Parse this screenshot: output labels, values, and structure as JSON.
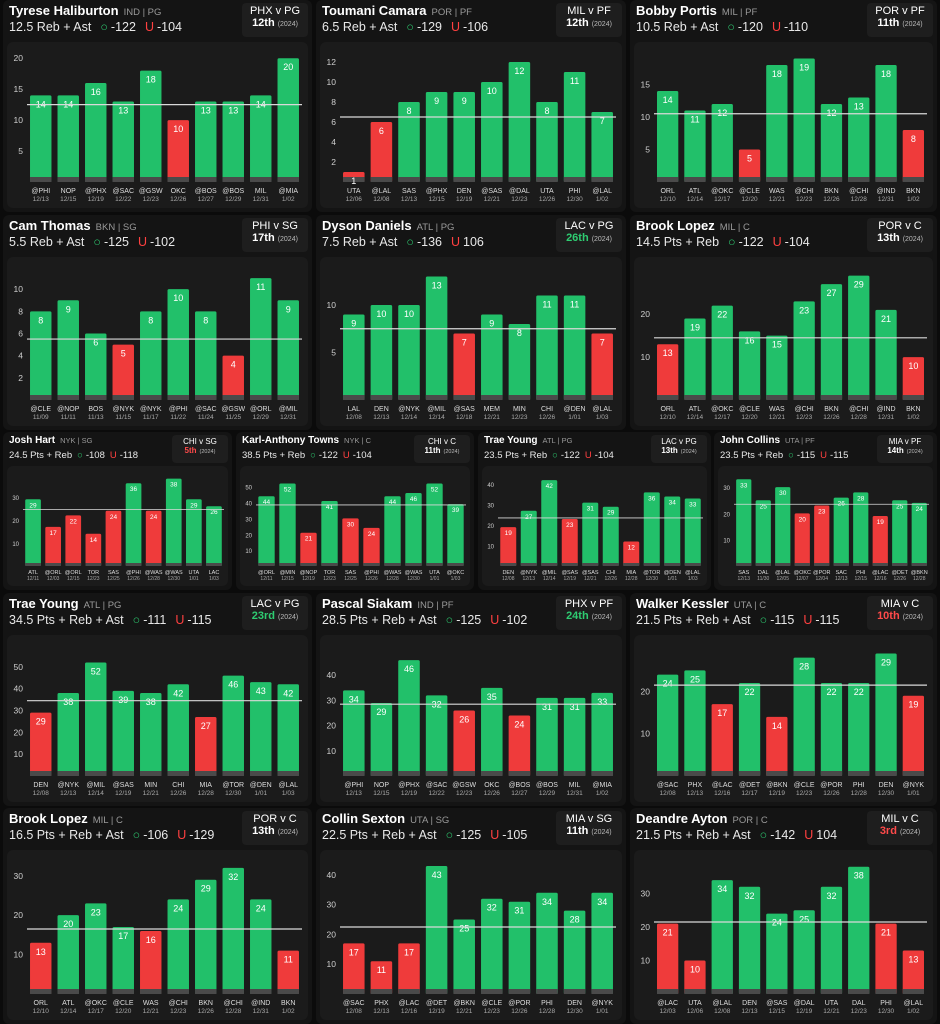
{
  "colors": {
    "over": "#22c06a",
    "under": "#ef3b3b",
    "line": "#d9d9d9",
    "base": "#4a4a4a",
    "rank_red": "#ff4a4a",
    "rank_green": "#2ecc71",
    "rank_white": "#ffffff"
  },
  "cards": [
    {
      "id": "c1",
      "size": "L",
      "name": "Tyrese Haliburton",
      "meta": "IND | PG",
      "prop": "12.5 Reb + Ast",
      "over": "-122",
      "under": "-104",
      "matchup": "PHX v PG",
      "rank": "12th",
      "rank_color": "white",
      "year": "(2024)",
      "chart_data": {
        "type": "bar",
        "line": 12.5,
        "ylim": [
          0,
          21
        ],
        "yticks": [
          5,
          10,
          15,
          20
        ],
        "values": [
          14,
          14,
          16,
          13,
          18,
          10,
          13,
          13,
          14,
          20
        ],
        "opp": [
          "@PHI",
          "NOP",
          "@PHX",
          "@SAC",
          "@GSW",
          "OKC",
          "@BOS",
          "@BOS",
          "MIL",
          "@MIA"
        ],
        "dates": [
          "12/13",
          "12/15",
          "12/19",
          "12/22",
          "12/23",
          "12/26",
          "12/27",
          "12/29",
          "12/31",
          "1/02"
        ]
      }
    },
    {
      "id": "c2",
      "size": "L",
      "name": "Toumani Camara",
      "meta": "POR | PF",
      "prop": "6.5 Reb + Ast",
      "over": "-129",
      "under": "-106",
      "matchup": "MIL v PF",
      "rank": "12th",
      "rank_color": "white",
      "year": "(2024)",
      "chart_data": {
        "type": "bar",
        "line": 6.5,
        "ylim": [
          0,
          13
        ],
        "yticks": [
          2,
          4,
          6,
          8,
          10,
          12
        ],
        "values": [
          1,
          6,
          8,
          9,
          9,
          10,
          12,
          8,
          11,
          7
        ],
        "opp": [
          "UTA",
          "@LAL",
          "SAS",
          "@PHX",
          "DEN",
          "@SAS",
          "@DAL",
          "UTA",
          "PHI",
          "@LAL"
        ],
        "dates": [
          "12/06",
          "12/08",
          "12/13",
          "12/15",
          "12/19",
          "12/21",
          "12/23",
          "12/26",
          "12/30",
          "1/02"
        ]
      }
    },
    {
      "id": "c3",
      "size": "L",
      "name": "Bobby Portis",
      "meta": "MIL | PF",
      "prop": "10.5 Reb + Ast",
      "over": "-120",
      "under": "-110",
      "matchup": "POR v PF",
      "rank": "11th",
      "rank_color": "white",
      "year": "(2024)",
      "chart_data": {
        "type": "bar",
        "line": 10.5,
        "ylim": [
          0,
          20
        ],
        "yticks": [
          5,
          10,
          15
        ],
        "values": [
          14,
          11,
          12,
          5,
          18,
          19,
          12,
          13,
          18,
          8
        ],
        "opp": [
          "ORL",
          "ATL",
          "@OKC",
          "@CLE",
          "WAS",
          "@CHI",
          "BKN",
          "@CHI",
          "@IND",
          "BKN"
        ],
        "dates": [
          "12/10",
          "12/14",
          "12/17",
          "12/20",
          "12/21",
          "12/23",
          "12/26",
          "12/28",
          "12/31",
          "1/02"
        ]
      }
    },
    {
      "id": "c4",
      "size": "L",
      "name": "Cam Thomas",
      "meta": "BKN | SG",
      "prop": "5.5 Reb + Ast",
      "over": "-125",
      "under": "-102",
      "matchup": "PHI v SG",
      "rank": "17th",
      "rank_color": "white",
      "year": "(2024)",
      "chart_data": {
        "type": "bar",
        "line": 5.5,
        "ylim": [
          0,
          12
        ],
        "yticks": [
          2,
          4,
          6,
          8,
          10
        ],
        "values": [
          8,
          9,
          6,
          5,
          8,
          10,
          8,
          4,
          11,
          9
        ],
        "opp": [
          "@CLE",
          "@NOP",
          "BOS",
          "@NYK",
          "@NYK",
          "@PHI",
          "@SAC",
          "@GSW",
          "@ORL",
          "@MIL"
        ],
        "dates": [
          "11/09",
          "11/11",
          "11/13",
          "11/15",
          "11/17",
          "11/22",
          "11/24",
          "11/25",
          "12/29",
          "12/31"
        ]
      }
    },
    {
      "id": "c5",
      "size": "L",
      "name": "Dyson Daniels",
      "meta": "ATL | PG",
      "prop": "7.5 Reb + Ast",
      "over": "-136",
      "under": "106",
      "matchup": "LAC v PG",
      "rank": "26th",
      "rank_color": "green",
      "year": "(2024)",
      "chart_data": {
        "type": "bar",
        "line": 7.5,
        "ylim": [
          0,
          14
        ],
        "yticks": [
          5,
          10
        ],
        "values": [
          9,
          10,
          10,
          13,
          7,
          9,
          8,
          11,
          11,
          7
        ],
        "opp": [
          "LAL",
          "DEN",
          "@NYK",
          "@MIL",
          "@SAS",
          "MEM",
          "MIN",
          "CHI",
          "@DEN",
          "@LAL"
        ],
        "dates": [
          "12/08",
          "12/13",
          "12/14",
          "12/14",
          "12/18",
          "12/21",
          "12/23",
          "12/26",
          "1/01",
          "1/03"
        ]
      }
    },
    {
      "id": "c6",
      "size": "L",
      "name": "Brook Lopez",
      "meta": "MIL | C",
      "prop": "14.5 Pts + Reb",
      "over": "-122",
      "under": "-104",
      "matchup": "POR v C",
      "rank": "13th",
      "rank_color": "white",
      "year": "(2024)",
      "chart_data": {
        "type": "bar",
        "line": 14.5,
        "ylim": [
          0,
          31
        ],
        "yticks": [
          10,
          20
        ],
        "values": [
          13,
          19,
          22,
          16,
          15,
          23,
          27,
          29,
          21,
          10
        ],
        "opp": [
          "ORL",
          "ATL",
          "@OKC",
          "@CLE",
          "WAS",
          "@CHI",
          "BKN",
          "@CHI",
          "@IND",
          "BKN"
        ],
        "dates": [
          "12/10",
          "12/14",
          "12/17",
          "12/20",
          "12/21",
          "12/23",
          "12/26",
          "12/28",
          "12/31",
          "1/02"
        ]
      }
    },
    {
      "id": "c7",
      "size": "S",
      "name": "Josh Hart",
      "meta": "NYK | SG",
      "prop": "24.5 Pts + Reb",
      "over": "-108",
      "under": "-118",
      "matchup": "CHI v SG",
      "rank": "5th",
      "rank_color": "red",
      "year": "(2024)",
      "chart_data": {
        "type": "bar",
        "line": 24.5,
        "ylim": [
          0,
          40
        ],
        "yticks": [
          10,
          20,
          30
        ],
        "values": [
          29,
          17,
          22,
          14,
          24,
          36,
          24,
          38,
          29,
          26
        ],
        "opp": [
          "ATL",
          "@ORL",
          "@ORL",
          "TOR",
          "SAS",
          "@PHI",
          "@WAS",
          "@WAS",
          "UTA",
          "LAC"
        ],
        "dates": [
          "12/11",
          "12/03",
          "12/15",
          "12/23",
          "12/25",
          "12/26",
          "12/28",
          "12/30",
          "1/01",
          "1/03"
        ]
      }
    },
    {
      "id": "c8",
      "size": "S",
      "name": "Karl-Anthony Towns",
      "meta": "NYK | C",
      "prop": "38.5 Pts + Reb",
      "over": "-122",
      "under": "-104",
      "matchup": "CHI v C",
      "rank": "11th",
      "rank_color": "white",
      "year": "(2024)",
      "chart_data": {
        "type": "bar",
        "line": 38.5,
        "ylim": [
          0,
          58
        ],
        "yticks": [
          10,
          20,
          30,
          40,
          50
        ],
        "values": [
          44,
          52,
          21,
          41,
          30,
          24,
          44,
          46,
          52,
          39
        ],
        "opp": [
          "@ORL",
          "@MIN",
          "@NOP",
          "TOR",
          "SAS",
          "@PHI",
          "@WAS",
          "@WAS",
          "UTA",
          "@OKC"
        ],
        "dates": [
          "12/11",
          "12/15",
          "12/19",
          "12/23",
          "12/25",
          "12/26",
          "12/28",
          "12/30",
          "1/01",
          "1/03"
        ]
      }
    },
    {
      "id": "c9",
      "size": "S",
      "name": "Trae Young",
      "meta": "ATL | PG",
      "prop": "23.5 Pts + Reb",
      "over": "-122",
      "under": "-104",
      "matchup": "LAC v PG",
      "rank": "13th",
      "rank_color": "white",
      "year": "(2024)",
      "chart_data": {
        "type": "bar",
        "line": 23.5,
        "ylim": [
          0,
          45
        ],
        "yticks": [
          10,
          20,
          30,
          40
        ],
        "values": [
          19,
          27,
          42,
          23,
          31,
          29,
          12,
          36,
          34,
          33
        ],
        "opp": [
          "DEN",
          "@NYK",
          "@MIL",
          "@SAS",
          "@SAS",
          "CHI",
          "MIA",
          "@TOR",
          "@DEN",
          "@LAL"
        ],
        "dates": [
          "12/08",
          "12/13",
          "12/14",
          "12/19",
          "12/21",
          "12/26",
          "12/28",
          "12/30",
          "1/01",
          "1/03"
        ]
      }
    },
    {
      "id": "c10",
      "size": "S",
      "name": "John Collins",
      "meta": "UTA | PF",
      "prop": "23.5 Pts + Reb",
      "over": "-115",
      "under": "-115",
      "matchup": "MIA v PF",
      "rank": "14th",
      "rank_color": "white",
      "year": "(2024)",
      "chart_data": {
        "type": "bar",
        "line": 23.5,
        "ylim": [
          0,
          35
        ],
        "yticks": [
          10,
          20,
          30
        ],
        "values": [
          33,
          25,
          30,
          20,
          23,
          26,
          28,
          19,
          25,
          24
        ],
        "opp": [
          "SAS",
          "DAL",
          "@LAL",
          "@OKC",
          "@POR",
          "SAC",
          "PHI",
          "@LAC",
          "@DET",
          "@BKN"
        ],
        "dates": [
          "12/13",
          "11/30",
          "12/05",
          "12/07",
          "12/04",
          "12/13",
          "12/15",
          "12/16",
          "12/26",
          "12/28"
        ]
      }
    },
    {
      "id": "c11",
      "size": "L",
      "name": "Trae Young",
      "meta": "ATL | PG",
      "prop": "34.5 Pts + Reb + Ast",
      "over": "-111",
      "under": "-115",
      "matchup": "LAC v PG",
      "rank": "23rd",
      "rank_color": "green",
      "year": "(2024)",
      "chart_data": {
        "type": "bar",
        "line": 34.5,
        "ylim": [
          0,
          60
        ],
        "yticks": [
          10,
          20,
          30,
          40,
          50
        ],
        "values": [
          29,
          38,
          52,
          39,
          38,
          42,
          27,
          46,
          43,
          42
        ],
        "opp": [
          "DEN",
          "@NYK",
          "@MIL",
          "@SAS",
          "MIN",
          "CHI",
          "MIA",
          "@TOR",
          "@DEN",
          "@LAL"
        ],
        "dates": [
          "12/08",
          "12/13",
          "12/14",
          "12/19",
          "12/21",
          "12/26",
          "12/28",
          "12/30",
          "1/01",
          "1/03"
        ]
      }
    },
    {
      "id": "c12",
      "size": "L",
      "name": "Pascal Siakam",
      "meta": "IND | PF",
      "prop": "28.5 Pts + Reb + Ast",
      "over": "-125",
      "under": "-102",
      "matchup": "PHX v PF",
      "rank": "24th",
      "rank_color": "green",
      "year": "(2024)",
      "chart_data": {
        "type": "bar",
        "line": 28.5,
        "ylim": [
          0,
          52
        ],
        "yticks": [
          10,
          20,
          30,
          40
        ],
        "values": [
          34,
          29,
          46,
          32,
          26,
          35,
          24,
          31,
          31,
          33
        ],
        "opp": [
          "@PHI",
          "NOP",
          "@PHX",
          "@SAC",
          "@GSW",
          "OKC",
          "@BOS",
          "@BOS",
          "MIL",
          "@MIA"
        ],
        "dates": [
          "12/13",
          "12/15",
          "12/19",
          "12/22",
          "12/23",
          "12/26",
          "12/27",
          "12/29",
          "12/31",
          "1/02"
        ]
      }
    },
    {
      "id": "c13",
      "size": "L",
      "name": "Walker Kessler",
      "meta": "UTA | C",
      "prop": "21.5 Pts + Reb + Ast",
      "over": "-115",
      "under": "-115",
      "matchup": "MIA v C",
      "rank": "10th",
      "rank_color": "red",
      "year": "(2024)",
      "chart_data": {
        "type": "bar",
        "line": 21.5,
        "ylim": [
          0,
          31
        ],
        "yticks": [
          10,
          20
        ],
        "values": [
          24,
          25,
          17,
          22,
          14,
          28,
          22,
          22,
          29,
          19
        ],
        "opp": [
          "@SAC",
          "PHX",
          "@LAC",
          "@DET",
          "@BKN",
          "@CLE",
          "@POR",
          "PHI",
          "DEN",
          "@NYK"
        ],
        "dates": [
          "12/08",
          "12/13",
          "12/16",
          "12/17",
          "12/19",
          "12/23",
          "12/26",
          "12/28",
          "12/30",
          "1/01"
        ]
      }
    },
    {
      "id": "c14",
      "size": "L",
      "name": "Brook Lopez",
      "meta": "MIL | C",
      "prop": "16.5 Pts + Reb + Ast",
      "over": "-106",
      "under": "-129",
      "matchup": "POR v C",
      "rank": "13th",
      "rank_color": "white",
      "year": "(2024)",
      "chart_data": {
        "type": "bar",
        "line": 16.5,
        "ylim": [
          0,
          34
        ],
        "yticks": [
          10,
          20,
          30
        ],
        "values": [
          13,
          20,
          23,
          17,
          16,
          24,
          29,
          32,
          24,
          11
        ],
        "opp": [
          "ORL",
          "ATL",
          "@OKC",
          "@CLE",
          "WAS",
          "@CHI",
          "BKN",
          "@CHI",
          "@IND",
          "BKN"
        ],
        "dates": [
          "12/10",
          "12/14",
          "12/17",
          "12/20",
          "12/21",
          "12/23",
          "12/26",
          "12/28",
          "12/31",
          "1/02"
        ]
      }
    },
    {
      "id": "c15",
      "size": "L",
      "name": "Collin Sexton",
      "meta": "UTA | SG",
      "prop": "22.5 Pts + Reb + Ast",
      "over": "-125",
      "under": "-105",
      "matchup": "MIA v SG",
      "rank": "11th",
      "rank_color": "white",
      "year": "(2024)",
      "chart_data": {
        "type": "bar",
        "line": 22.5,
        "ylim": [
          0,
          45
        ],
        "yticks": [
          10,
          20,
          30,
          40
        ],
        "values": [
          17,
          11,
          17,
          43,
          25,
          32,
          31,
          34,
          28,
          34
        ],
        "opp": [
          "@SAC",
          "PHX",
          "@LAC",
          "@DET",
          "@BKN",
          "@CLE",
          "@POR",
          "PHI",
          "DEN",
          "@NYK"
        ],
        "dates": [
          "12/08",
          "12/13",
          "12/16",
          "12/19",
          "12/21",
          "12/23",
          "12/26",
          "12/28",
          "12/30",
          "1/01"
        ]
      }
    },
    {
      "id": "c16",
      "size": "L",
      "name": "Deandre Ayton",
      "meta": "POR | C",
      "prop": "21.5 Pts + Reb + Ast",
      "over": "-142",
      "under": "104",
      "matchup": "MIL v C",
      "rank": "3rd",
      "rank_color": "red",
      "year": "(2024)",
      "chart_data": {
        "type": "bar",
        "line": 21.5,
        "ylim": [
          0,
          40
        ],
        "yticks": [
          10,
          20,
          30
        ],
        "values": [
          21,
          10,
          34,
          32,
          24,
          25,
          32,
          38,
          21,
          13
        ],
        "opp": [
          "@LAC",
          "UTA",
          "@LAL",
          "DEN",
          "@SAS",
          "@DAL",
          "UTA",
          "DAL",
          "PHI",
          "@LAL"
        ],
        "dates": [
          "12/03",
          "12/06",
          "12/08",
          "12/13",
          "12/15",
          "12/19",
          "12/21",
          "12/23",
          "12/30",
          "1/02"
        ]
      }
    }
  ]
}
